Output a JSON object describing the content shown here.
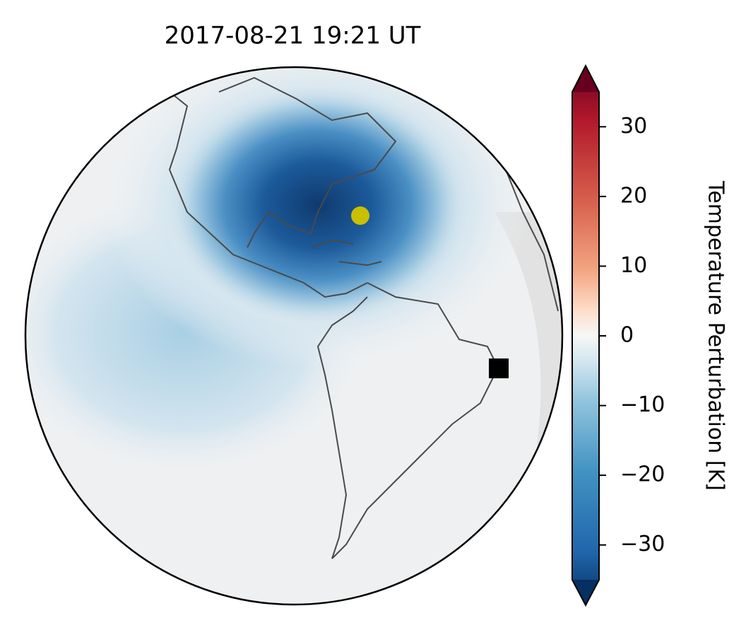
{
  "title": "2017-08-21  19:21 UT",
  "colorbar": {
    "label": "Temperature Perturbation [K]",
    "lim": [
      -35,
      35
    ],
    "ticks": [
      {
        "value": -30,
        "label": "−30"
      },
      {
        "value": -20,
        "label": "−20"
      },
      {
        "value": -10,
        "label": "−10"
      },
      0,
      10,
      20,
      30
    ]
  }
}
